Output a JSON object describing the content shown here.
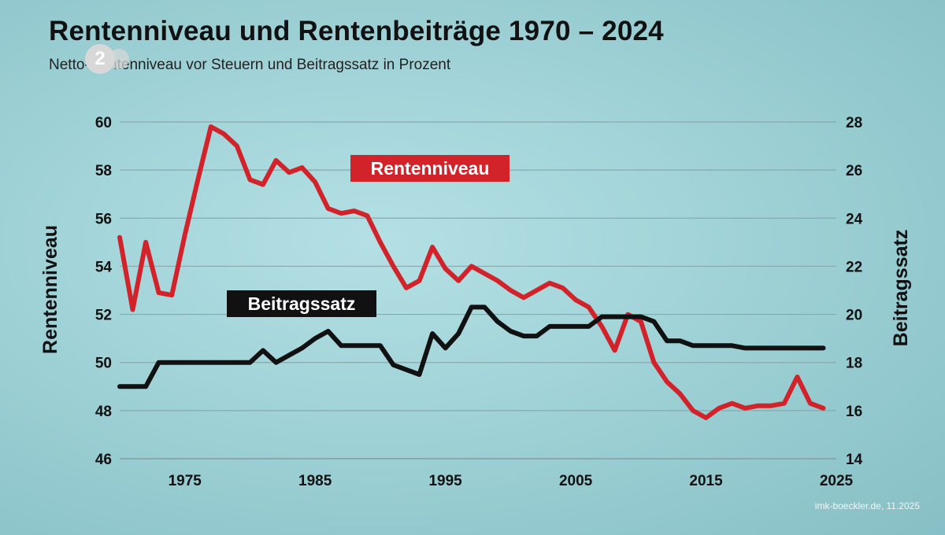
{
  "header": {
    "title": "Rentenniveau und Rentenbeiträge 1970 – 2024",
    "subtitle": "Netto-Rentenniveau vor Steuern und Beitragssatz in Prozent",
    "logo_text": "2"
  },
  "footer": {
    "source": "imk-boeckler.de, 11.2025"
  },
  "colors": {
    "red": "#d2232a",
    "black": "#111111",
    "grid": "#8aa8ac"
  },
  "chart_data": {
    "type": "line",
    "title": "Rentenniveau und Rentenbeiträge 1970 – 2024",
    "xlabel": "",
    "ylabel": "Rentenniveau",
    "ylabel_right": "Beitragssatz",
    "xlim": [
      1970,
      2025
    ],
    "ylim": [
      46,
      60
    ],
    "ylim_right": [
      14,
      28
    ],
    "xticks": [
      "1975",
      "1985",
      "1995",
      "2005",
      "2015",
      "2025"
    ],
    "yticks_left": [
      "46",
      "48",
      "50",
      "52",
      "54",
      "56",
      "58",
      "60"
    ],
    "yticks_right": [
      "14",
      "16",
      "18",
      "20",
      "22",
      "24",
      "26",
      "28"
    ],
    "grid": true,
    "series": [
      {
        "name": "Rentenniveau",
        "axis": "left",
        "color": "#d2232a",
        "x": [
          1970,
          1971,
          1972,
          1973,
          1974,
          1975,
          1976,
          1977,
          1978,
          1979,
          1980,
          1981,
          1982,
          1983,
          1984,
          1985,
          1986,
          1987,
          1988,
          1989,
          1990,
          1991,
          1992,
          1993,
          1994,
          1995,
          1996,
          1997,
          1998,
          1999,
          2000,
          2001,
          2002,
          2003,
          2004,
          2005,
          2006,
          2007,
          2008,
          2009,
          2010,
          2011,
          2012,
          2013,
          2014,
          2015,
          2016,
          2017,
          2018,
          2019,
          2020,
          2021,
          2022,
          2023,
          2024
        ],
        "values": [
          55.2,
          52.2,
          55.0,
          52.9,
          52.8,
          55.3,
          57.6,
          59.8,
          59.5,
          59.0,
          57.6,
          57.4,
          58.4,
          57.9,
          58.1,
          57.5,
          56.4,
          56.2,
          56.3,
          56.1,
          55.0,
          54.0,
          53.1,
          53.4,
          54.8,
          53.9,
          53.4,
          54.0,
          53.7,
          53.4,
          53.0,
          52.7,
          53.0,
          53.3,
          53.1,
          52.6,
          52.3,
          51.5,
          50.5,
          52.0,
          51.7,
          50.0,
          49.2,
          48.7,
          48.0,
          47.7,
          48.1,
          48.3,
          48.1,
          48.2,
          48.2,
          48.3,
          49.4,
          48.3,
          48.1
        ]
      },
      {
        "name": "Beitragssatz",
        "axis": "right",
        "color": "#111111",
        "x": [
          1970,
          1971,
          1972,
          1973,
          1974,
          1975,
          1976,
          1977,
          1978,
          1979,
          1980,
          1981,
          1982,
          1983,
          1984,
          1985,
          1986,
          1987,
          1988,
          1989,
          1990,
          1991,
          1992,
          1993,
          1994,
          1995,
          1996,
          1997,
          1998,
          1999,
          2000,
          2001,
          2002,
          2003,
          2004,
          2005,
          2006,
          2007,
          2008,
          2009,
          2010,
          2011,
          2012,
          2013,
          2014,
          2015,
          2016,
          2017,
          2018,
          2019,
          2020,
          2021,
          2022,
          2023,
          2024
        ],
        "values": [
          17.0,
          17.0,
          17.0,
          18.0,
          18.0,
          18.0,
          18.0,
          18.0,
          18.0,
          18.0,
          18.0,
          18.5,
          18.0,
          18.3,
          18.6,
          19.0,
          19.3,
          18.7,
          18.7,
          18.7,
          18.7,
          17.9,
          17.7,
          17.5,
          19.2,
          18.6,
          19.2,
          20.3,
          20.3,
          19.7,
          19.3,
          19.1,
          19.1,
          19.5,
          19.5,
          19.5,
          19.5,
          19.9,
          19.9,
          19.9,
          19.9,
          19.7,
          18.9,
          18.9,
          18.7,
          18.7,
          18.7,
          18.7,
          18.6,
          18.6,
          18.6,
          18.6,
          18.6,
          18.6,
          18.6
        ]
      }
    ],
    "annotations": [
      {
        "text": "Rentenniveau",
        "style": "white text on red box",
        "series": "Rentenniveau"
      },
      {
        "text": "Beitragssatz",
        "style": "white text on black box",
        "series": "Beitragssatz"
      }
    ]
  }
}
